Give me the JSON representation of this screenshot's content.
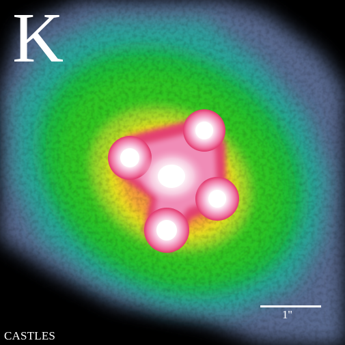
{
  "image": {
    "band_label": "K",
    "scale_label": "1''",
    "credit": "CASTLES",
    "colors": {
      "background": "#000000",
      "outer_halo": "#5d6c97",
      "teal": "#2aa7a0",
      "green": "#15c02a",
      "yellow": "#f4ec1e",
      "orange": "#f28a3a",
      "red": "#e13a6b",
      "pink": "#f2a2c8",
      "core": "#ffffff"
    },
    "icons": [
      "galaxy-halo-icon",
      "lensed-quasar-image-icon",
      "lens-galaxy-core-icon"
    ]
  }
}
